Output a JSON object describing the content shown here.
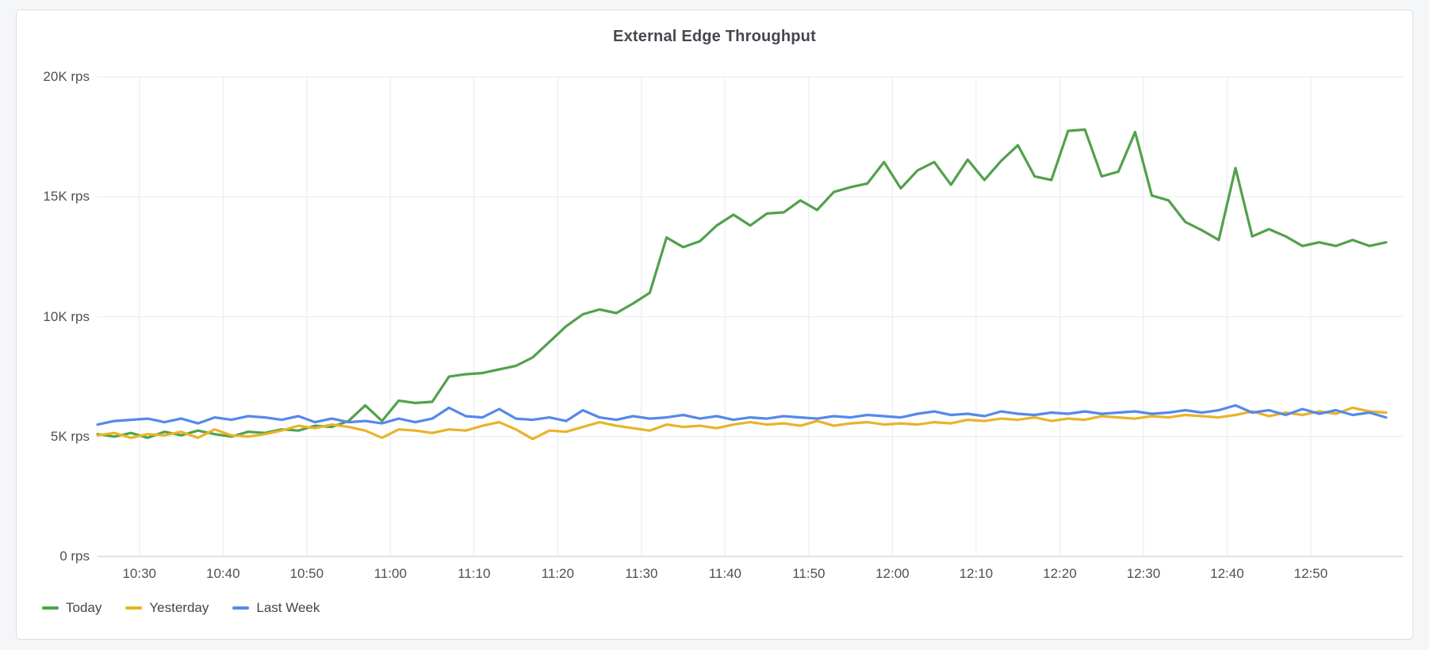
{
  "panel": {
    "title": "External Edge Throughput"
  },
  "chart_data": {
    "type": "line",
    "title": "External Edge Throughput",
    "grid": true,
    "legend_position": "bottom-left",
    "x_axis": {
      "unit": "time",
      "tick_labels": [
        "10:30",
        "10:40",
        "10:50",
        "11:00",
        "11:10",
        "11:20",
        "11:30",
        "11:40",
        "11:50",
        "12:00",
        "12:10",
        "12:20",
        "12:30",
        "12:40",
        "12:50"
      ],
      "tick_minutes": [
        0,
        10,
        20,
        30,
        40,
        50,
        60,
        70,
        80,
        90,
        100,
        110,
        120,
        130,
        140
      ],
      "xlim_minutes": [
        -5,
        151
      ]
    },
    "y_axis": {
      "unit": "rps",
      "tick_labels": [
        "0 rps",
        "5K rps",
        "10K rps",
        "15K rps",
        "20K rps"
      ],
      "tick_values_krps": [
        0,
        5,
        10,
        15,
        20
      ],
      "ylim_krps": [
        0,
        20
      ]
    },
    "sample_start_minute": -5,
    "sample_step_minutes": 2,
    "series": [
      {
        "name": "Today",
        "color": "#51a14b",
        "values_krps": [
          5.1,
          5.0,
          5.15,
          4.95,
          5.2,
          5.05,
          5.25,
          5.1,
          5.0,
          5.2,
          5.15,
          5.3,
          5.25,
          5.45,
          5.4,
          5.65,
          6.3,
          5.65,
          6.5,
          6.4,
          6.45,
          7.5,
          7.6,
          7.65,
          7.8,
          7.95,
          8.3,
          8.95,
          9.6,
          10.1,
          10.3,
          10.15,
          10.55,
          11.0,
          13.3,
          12.9,
          13.15,
          13.8,
          14.25,
          13.8,
          14.3,
          14.35,
          14.85,
          14.45,
          15.2,
          15.4,
          15.55,
          16.45,
          15.35,
          16.1,
          16.45,
          15.5,
          16.55,
          15.7,
          16.5,
          17.15,
          15.85,
          15.7,
          17.75,
          17.8,
          15.85,
          16.05,
          17.7,
          15.05,
          14.85,
          13.95,
          13.6,
          13.2,
          16.2,
          13.35,
          13.65,
          13.35,
          12.95,
          13.1,
          12.95,
          13.2,
          12.95,
          13.1
        ]
      },
      {
        "name": "Yesterday",
        "color": "#e9b32a",
        "values_krps": [
          5.05,
          5.15,
          4.95,
          5.1,
          5.05,
          5.2,
          4.95,
          5.3,
          5.05,
          5.0,
          5.1,
          5.25,
          5.45,
          5.35,
          5.5,
          5.4,
          5.25,
          4.95,
          5.3,
          5.25,
          5.15,
          5.3,
          5.25,
          5.45,
          5.6,
          5.3,
          4.9,
          5.25,
          5.2,
          5.4,
          5.6,
          5.45,
          5.35,
          5.25,
          5.5,
          5.4,
          5.45,
          5.35,
          5.5,
          5.6,
          5.5,
          5.55,
          5.45,
          5.65,
          5.45,
          5.55,
          5.6,
          5.5,
          5.55,
          5.5,
          5.6,
          5.55,
          5.7,
          5.65,
          5.75,
          5.7,
          5.8,
          5.65,
          5.75,
          5.7,
          5.85,
          5.8,
          5.75,
          5.85,
          5.8,
          5.9,
          5.85,
          5.8,
          5.9,
          6.05,
          5.85,
          6.0,
          5.9,
          6.05,
          5.95,
          6.2,
          6.05,
          6.0
        ]
      },
      {
        "name": "Last Week",
        "color": "#5589e8",
        "values_krps": [
          5.5,
          5.65,
          5.7,
          5.75,
          5.6,
          5.75,
          5.55,
          5.8,
          5.7,
          5.85,
          5.8,
          5.7,
          5.85,
          5.6,
          5.75,
          5.6,
          5.65,
          5.55,
          5.75,
          5.6,
          5.75,
          6.2,
          5.85,
          5.8,
          6.15,
          5.75,
          5.7,
          5.8,
          5.65,
          6.1,
          5.8,
          5.7,
          5.85,
          5.75,
          5.8,
          5.9,
          5.75,
          5.85,
          5.7,
          5.8,
          5.75,
          5.85,
          5.8,
          5.75,
          5.85,
          5.8,
          5.9,
          5.85,
          5.8,
          5.95,
          6.05,
          5.9,
          5.95,
          5.85,
          6.05,
          5.95,
          5.9,
          6.0,
          5.95,
          6.05,
          5.95,
          6.0,
          6.05,
          5.95,
          6.0,
          6.1,
          6.0,
          6.1,
          6.3,
          6.0,
          6.1,
          5.9,
          6.15,
          5.95,
          6.1,
          5.9,
          6.0,
          5.8
        ]
      }
    ],
    "colors": {
      "grid_line": "#eef0f3",
      "axis_line": "#d3d7dc",
      "tick_text": "#4c5057",
      "title_text": "#45484e",
      "panel_border": "#d9dde3",
      "panel_bg": "#ffffff",
      "page_bg": "#f5f6f8"
    }
  }
}
